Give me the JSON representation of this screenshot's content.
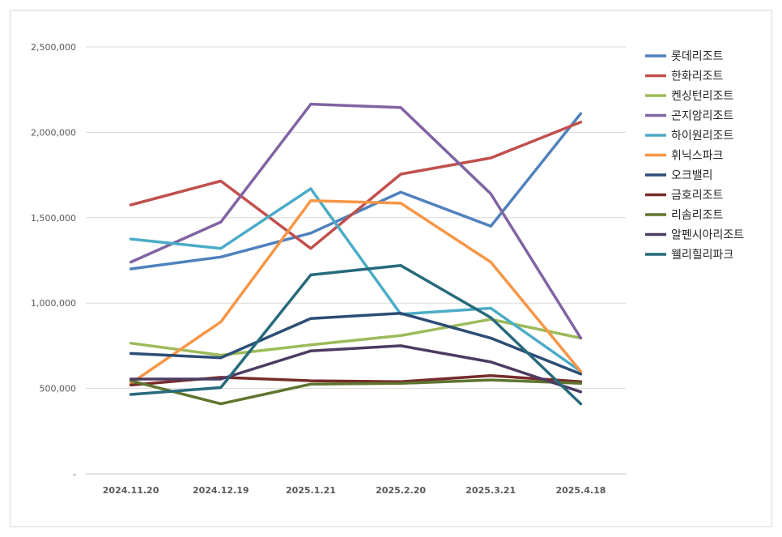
{
  "chart_data": {
    "type": "line",
    "title": "",
    "xlabel": "",
    "ylabel": "",
    "categories": [
      "2024.11.20",
      "2024.12.19",
      "2025.1.21",
      "2025.2.20",
      "2025.3.21",
      "2025.4.18"
    ],
    "ylim": [
      0,
      2500000
    ],
    "yticks": [
      0,
      500000,
      1000000,
      1500000,
      2000000,
      2500000
    ],
    "ytick_labels": [
      "-",
      "500,000",
      "1,000,000",
      "1,500,000",
      "2,000,000",
      "2,500,000"
    ],
    "grid": true,
    "legend_position": "right",
    "series": [
      {
        "name": "롯데리조트",
        "color": "#4f81bd",
        "values": [
          1200000,
          1270000,
          1410000,
          1650000,
          1450000,
          2110000
        ]
      },
      {
        "name": "한화리조트",
        "color": "#c0504d",
        "values": [
          1575000,
          1715000,
          1320000,
          1755000,
          1850000,
          2060000
        ]
      },
      {
        "name": "켄싱턴리조트",
        "color": "#9bbb59",
        "values": [
          765000,
          695000,
          755000,
          810000,
          905000,
          795000
        ]
      },
      {
        "name": "곤지암리조트",
        "color": "#8064a2",
        "values": [
          1240000,
          1475000,
          2165000,
          2145000,
          1640000,
          795000
        ]
      },
      {
        "name": "하이원리조트",
        "color": "#4bacc6",
        "values": [
          1375000,
          1320000,
          1670000,
          935000,
          970000,
          600000
        ]
      },
      {
        "name": "휘닉스파크",
        "color": "#f79646",
        "values": [
          530000,
          890000,
          1600000,
          1585000,
          1240000,
          600000
        ]
      },
      {
        "name": "오크밸리",
        "color": "#2c4d75",
        "values": [
          705000,
          680000,
          910000,
          940000,
          795000,
          585000
        ]
      },
      {
        "name": "금호리조트",
        "color": "#772c2a",
        "values": [
          520000,
          565000,
          545000,
          540000,
          575000,
          540000
        ]
      },
      {
        "name": "리솜리조트",
        "color": "#5f7530",
        "values": [
          545000,
          410000,
          525000,
          530000,
          550000,
          530000
        ]
      },
      {
        "name": "알펜시아리조트",
        "color": "#4d3b62",
        "values": [
          555000,
          555000,
          720000,
          750000,
          655000,
          480000
        ]
      },
      {
        "name": "웰리힐리파크",
        "color": "#276a7c",
        "values": [
          465000,
          505000,
          1165000,
          1220000,
          915000,
          410000
        ]
      }
    ]
  }
}
